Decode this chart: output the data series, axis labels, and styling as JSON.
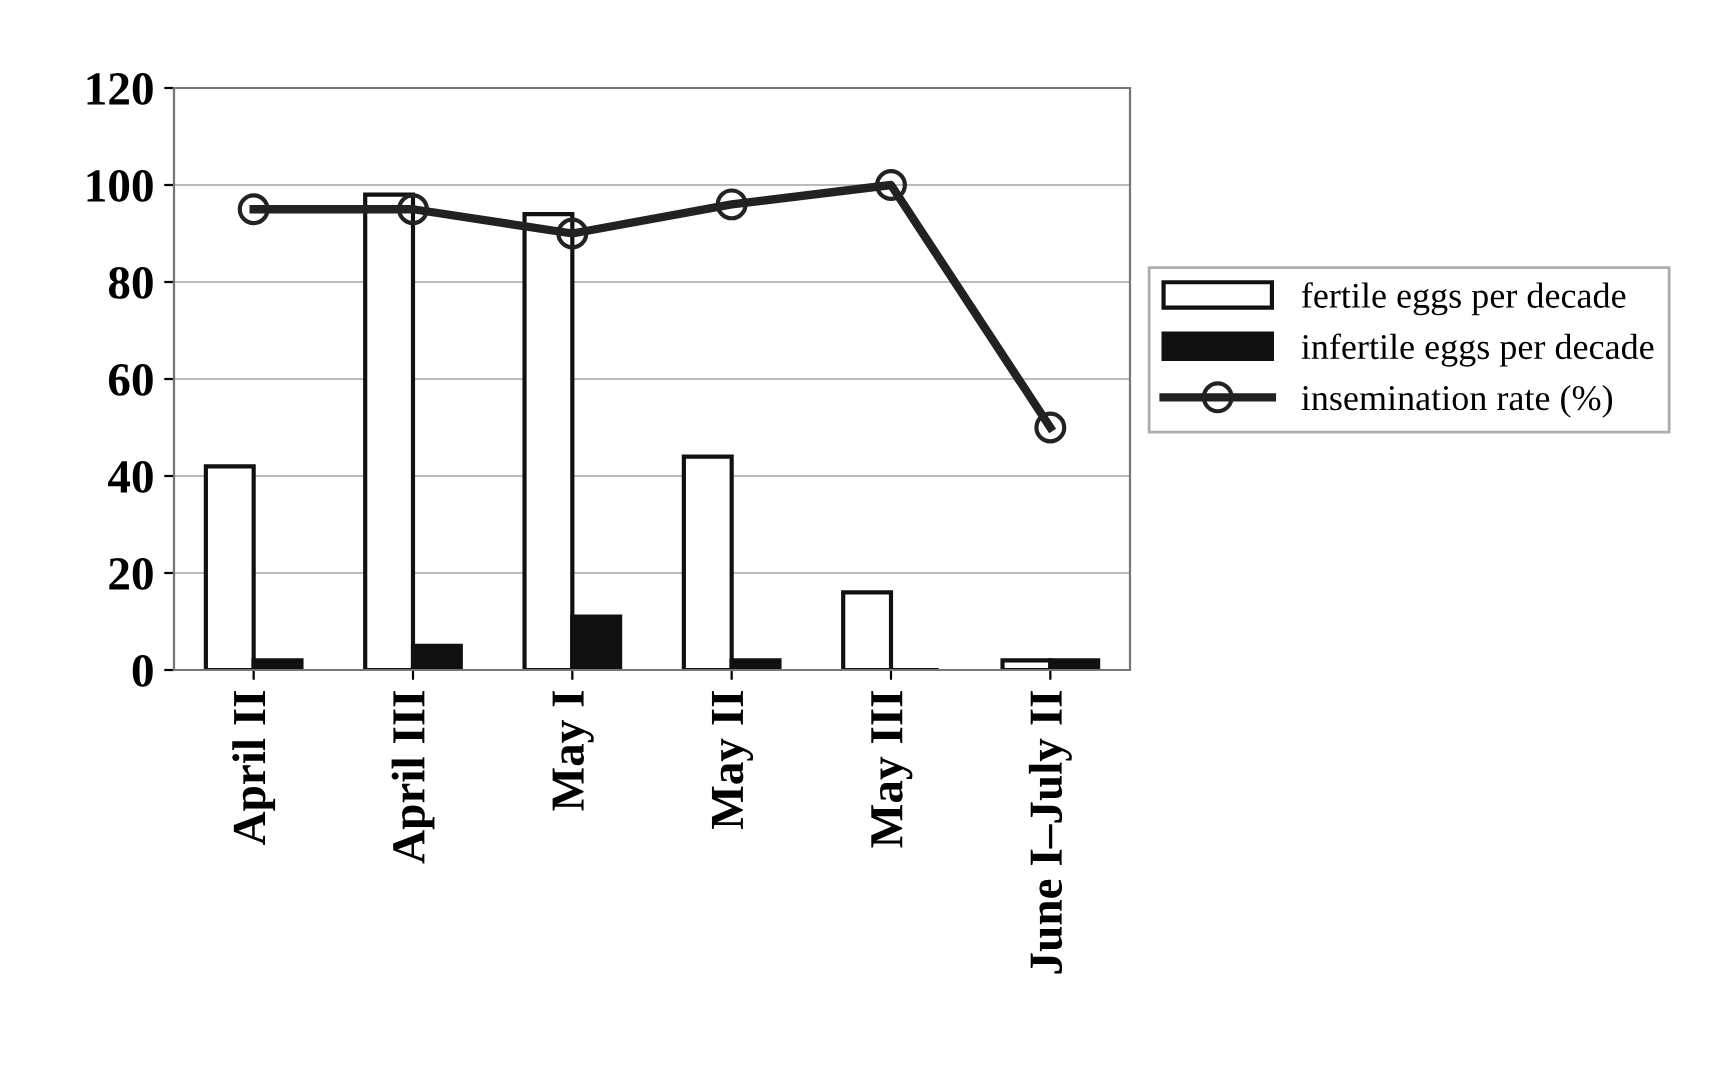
{
  "chart_data": {
    "type": "bar",
    "categories": [
      "April II",
      "April III",
      "May I",
      "May II",
      "May III",
      "June I–July II"
    ],
    "series": [
      {
        "name": "fertile eggs per decade",
        "color": "#ffffff",
        "values": [
          42,
          98,
          94,
          44,
          16,
          2
        ]
      },
      {
        "name": "infertile eggs per decade",
        "color": "#111111",
        "values": [
          2,
          5,
          11,
          2,
          0,
          2
        ]
      },
      {
        "name": "insemination rate (%)",
        "type": "line",
        "color": "#222222",
        "marker": "circle",
        "values": [
          95,
          95,
          90,
          96,
          100,
          50
        ]
      }
    ],
    "ylim": [
      0,
      120
    ],
    "yticks": [
      0,
      20,
      40,
      60,
      80,
      100,
      120
    ],
    "grid": "y",
    "legend": "right"
  }
}
